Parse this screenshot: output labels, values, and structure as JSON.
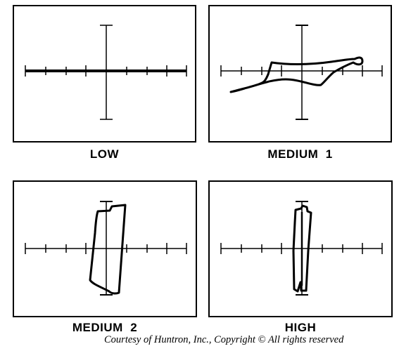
{
  "panels": [
    {
      "id": "low",
      "label": "LOW"
    },
    {
      "id": "medium1",
      "label": "MEDIUM  1"
    },
    {
      "id": "medium2",
      "label": "MEDIUM  2"
    },
    {
      "id": "high",
      "label": "HIGH"
    }
  ],
  "credit": "Courtesy of Huntron, Inc., Copyright ©  All rights reserved",
  "colors": {
    "trace": "#000000",
    "frame": "#000000",
    "background": "#ffffff"
  }
}
